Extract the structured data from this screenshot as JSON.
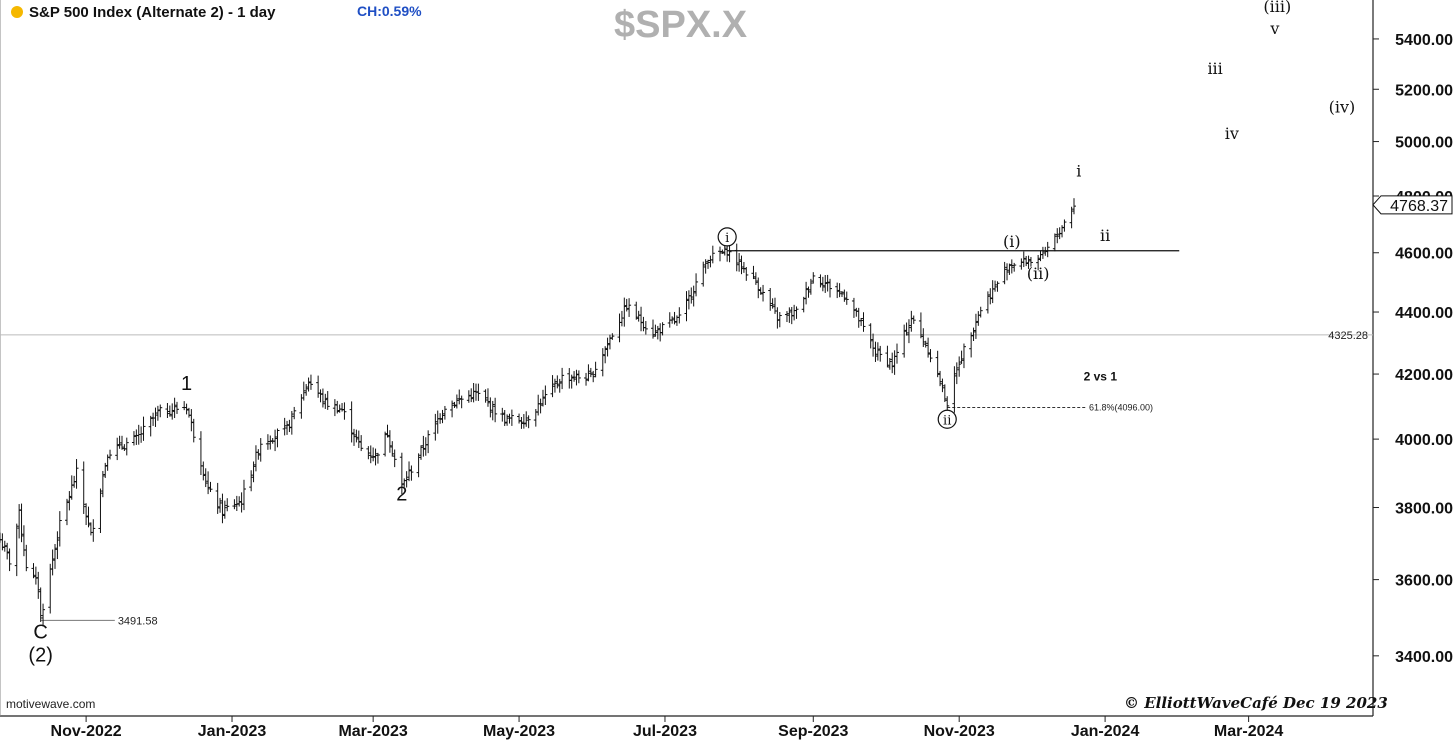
{
  "header": {
    "title": "S&P 500 Index (Alternate 2) - 1 day",
    "change": "CH:0.59%",
    "ticker": "$SPX.X",
    "watermark": "motivewave.com",
    "copyright": "© ElliottWaveCafé Dec 19 2023"
  },
  "colors": {
    "bars": "#111111",
    "dot": "#f5b800",
    "change_text": "#1f4fc4",
    "ticker": "#b0b0b0",
    "ref_line": "#bbbbbb",
    "fib_line": "#333333"
  },
  "chart_data": {
    "type": "bar",
    "subtype": "ohlc",
    "interval": "1 day",
    "xlim": [
      "2022-09-26",
      "2024-04-22"
    ],
    "ylim": [
      3250,
      5560
    ],
    "x_ticks": [
      {
        "date": "2022-11-01",
        "label": "Nov-2022"
      },
      {
        "date": "2023-01-01",
        "label": "Jan-2023"
      },
      {
        "date": "2023-03-01",
        "label": "Mar-2023"
      },
      {
        "date": "2023-05-01",
        "label": "May-2023"
      },
      {
        "date": "2023-07-01",
        "label": "Jul-2023"
      },
      {
        "date": "2023-09-01",
        "label": "Sep-2023"
      },
      {
        "date": "2023-11-01",
        "label": "Nov-2023"
      },
      {
        "date": "2024-01-01",
        "label": "Jan-2024"
      },
      {
        "date": "2024-03-01",
        "label": "Mar-2024"
      }
    ],
    "y_ticks": [
      {
        "value": 3400,
        "label": "3400.00"
      },
      {
        "value": 3600,
        "label": "3600.00"
      },
      {
        "value": 3800,
        "label": "3800.00"
      },
      {
        "value": 4000,
        "label": "4000.00"
      },
      {
        "value": 4200,
        "label": "4200.00"
      },
      {
        "value": 4400,
        "label": "4400.00"
      },
      {
        "value": 4600,
        "label": "4600.00"
      },
      {
        "value": 4800,
        "label": "4800.00"
      },
      {
        "value": 5000,
        "label": "5000.00"
      },
      {
        "value": 5200,
        "label": "5200.00"
      },
      {
        "value": 5400,
        "label": "5400.00"
      }
    ],
    "last_price": {
      "value": 4768.37,
      "label": "4768.37"
    },
    "price_path": [
      [
        "2022-09-26",
        3710
      ],
      [
        "2022-09-30",
        3650
      ],
      [
        "2022-10-04",
        3780
      ],
      [
        "2022-10-07",
        3640
      ],
      [
        "2022-10-12",
        3580
      ],
      [
        "2022-10-13",
        3500
      ],
      [
        "2022-10-21",
        3750
      ],
      [
        "2022-10-28",
        3900
      ],
      [
        "2022-11-03",
        3720
      ],
      [
        "2022-11-10",
        3960
      ],
      [
        "2022-11-22",
        4000
      ],
      [
        "2022-12-01",
        4080
      ],
      [
        "2022-12-13",
        4100
      ],
      [
        "2022-12-22",
        3850
      ],
      [
        "2022-12-28",
        3790
      ],
      [
        "2023-01-05",
        3820
      ],
      [
        "2023-01-13",
        3990
      ],
      [
        "2023-01-24",
        4030
      ],
      [
        "2023-02-02",
        4180
      ],
      [
        "2023-02-09",
        4110
      ],
      [
        "2023-02-16",
        4090
      ],
      [
        "2023-02-24",
        3970
      ],
      [
        "2023-03-02",
        3950
      ],
      [
        "2023-03-07",
        4020
      ],
      [
        "2023-03-13",
        3860
      ],
      [
        "2023-03-20",
        3950
      ],
      [
        "2023-03-31",
        4100
      ],
      [
        "2023-04-13",
        4140
      ],
      [
        "2023-04-25",
        4060
      ],
      [
        "2023-05-04",
        4060
      ],
      [
        "2023-05-19",
        4190
      ],
      [
        "2023-05-31",
        4190
      ],
      [
        "2023-06-15",
        4420
      ],
      [
        "2023-06-26",
        4330
      ],
      [
        "2023-07-07",
        4380
      ],
      [
        "2023-07-19",
        4580
      ],
      [
        "2023-07-27",
        4607
      ],
      [
        "2023-08-08",
        4500
      ],
      [
        "2023-08-17",
        4380
      ],
      [
        "2023-08-25",
        4400
      ],
      [
        "2023-09-01",
        4520
      ],
      [
        "2023-09-15",
        4450
      ],
      [
        "2023-09-27",
        4270
      ],
      [
        "2023-10-04",
        4230
      ],
      [
        "2023-10-12",
        4380
      ],
      [
        "2023-10-19",
        4280
      ],
      [
        "2023-10-27",
        4110
      ],
      [
        "2023-11-01",
        4240
      ],
      [
        "2023-11-10",
        4410
      ],
      [
        "2023-11-22",
        4560
      ],
      [
        "2023-12-05",
        4580
      ],
      [
        "2023-12-12",
        4660
      ],
      [
        "2023-12-19",
        4768.37
      ]
    ],
    "levels": [
      {
        "type": "horizontal",
        "value": 4325.28,
        "label": "4325.28",
        "from": "2022-09-26",
        "to": "2024-04-22"
      },
      {
        "type": "horizontal",
        "value": 4607,
        "from": "2023-07-27",
        "to": "2024-02-01"
      },
      {
        "type": "horizontal",
        "value": 3491.58,
        "label": "3491.58",
        "from": "2022-10-13",
        "to": "2022-11-13"
      },
      {
        "type": "fib",
        "value": 4096,
        "label": "61.8%(4096.00)",
        "from": "2023-10-27",
        "to": "2023-12-24"
      }
    ],
    "annotations": [
      {
        "text": "C",
        "x": "2022-10-13",
        "y": 3445,
        "style": "plain"
      },
      {
        "text": "(2)",
        "x": "2022-10-13",
        "y": 3385,
        "style": "plain"
      },
      {
        "text": "1",
        "x": "2022-12-13",
        "y": 4150,
        "style": "plain"
      },
      {
        "text": "2",
        "x": "2023-03-13",
        "y": 3820,
        "style": "plain"
      },
      {
        "text": "i",
        "x": "2023-07-27",
        "y": 4655,
        "style": "circled"
      },
      {
        "text": "ii",
        "x": "2023-10-27",
        "y": 4060,
        "style": "circled"
      },
      {
        "text": "(i)",
        "x": "2023-11-23",
        "y": 4620,
        "style": "serif"
      },
      {
        "text": "(ii)",
        "x": "2023-12-04",
        "y": 4510,
        "style": "serif"
      },
      {
        "text": "i",
        "x": "2023-12-21",
        "y": 4870,
        "style": "serif"
      },
      {
        "text": "ii",
        "x": "2024-01-01",
        "y": 4640,
        "style": "serif"
      },
      {
        "text": "iii",
        "x": "2024-02-16",
        "y": 5260,
        "style": "serif"
      },
      {
        "text": "iv",
        "x": "2024-02-23",
        "y": 5010,
        "style": "serif"
      },
      {
        "text": "v",
        "x": "2024-03-12",
        "y": 5420,
        "style": "serif"
      },
      {
        "text": "(iii)",
        "x": "2024-03-13",
        "y": 5510,
        "style": "serif"
      },
      {
        "text": "(iv)",
        "x": "2024-04-09",
        "y": 5110,
        "style": "serif"
      },
      {
        "text": "2 vs 1",
        "x": "2023-12-30",
        "y": 4180,
        "style": "bold-small"
      }
    ]
  }
}
